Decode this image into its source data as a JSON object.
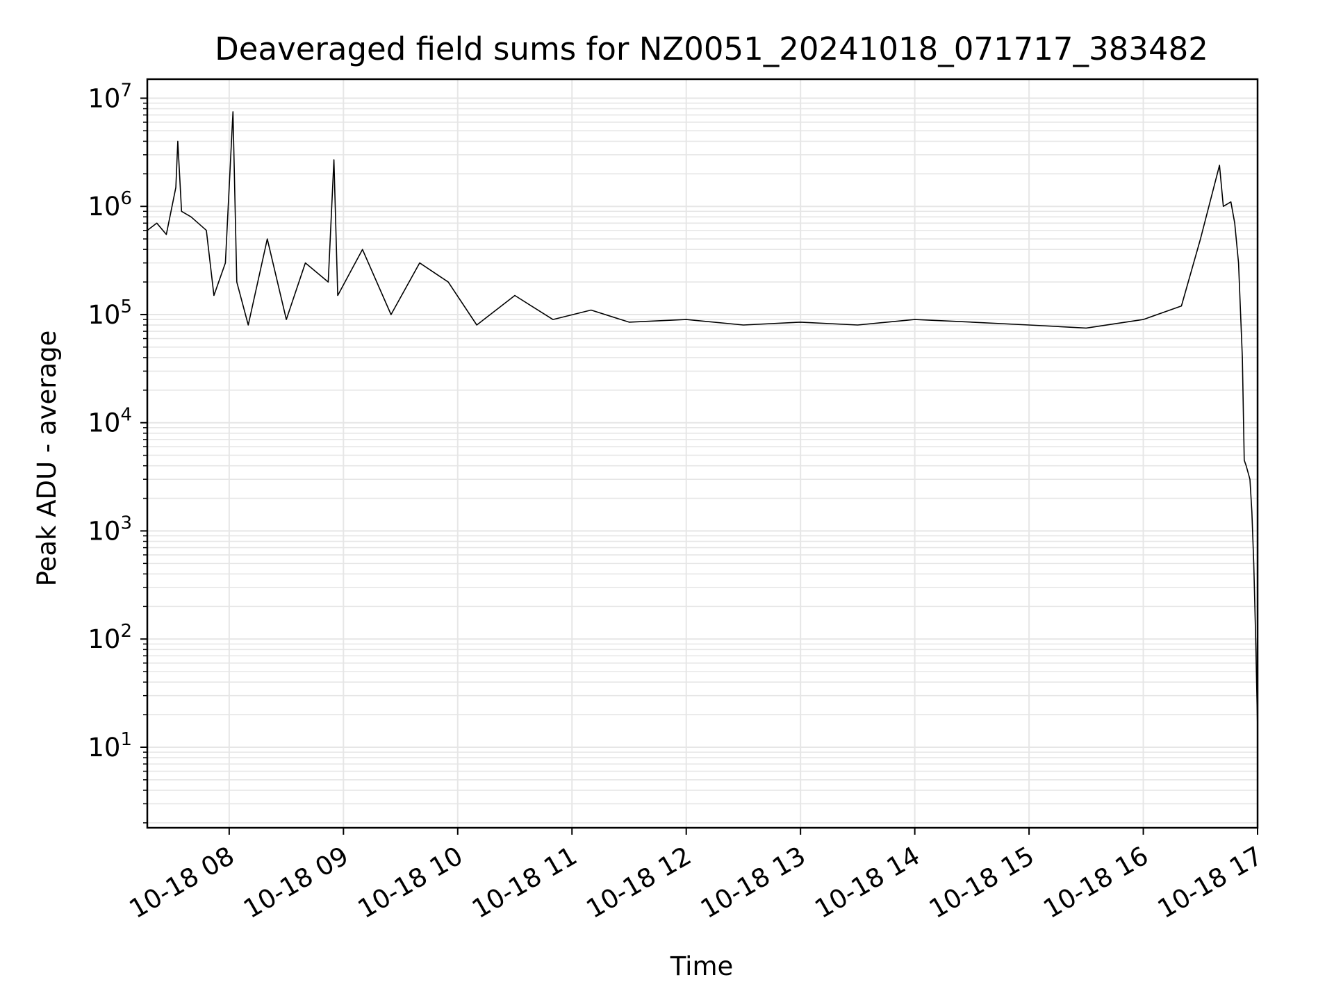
{
  "chart_data": {
    "type": "line",
    "title": "Deaveraged field sums for NZ0051_20241018_071717_383482",
    "xlabel": "Time",
    "ylabel": "Peak ADU - average",
    "yscale": "log",
    "grid": true,
    "line_color": "#000000",
    "grid_color": "#e6e6e6",
    "xlim": [
      "2024-10-18 07:17",
      "2024-10-18 17:00"
    ],
    "ylim": [
      1.8,
      15000000
    ],
    "x_ticks": [
      {
        "t": "2024-10-18 08:00",
        "label": "10-18 08"
      },
      {
        "t": "2024-10-18 09:00",
        "label": "10-18 09"
      },
      {
        "t": "2024-10-18 10:00",
        "label": "10-18 10"
      },
      {
        "t": "2024-10-18 11:00",
        "label": "10-18 11"
      },
      {
        "t": "2024-10-18 12:00",
        "label": "10-18 12"
      },
      {
        "t": "2024-10-18 13:00",
        "label": "10-18 13"
      },
      {
        "t": "2024-10-18 14:00",
        "label": "10-18 14"
      },
      {
        "t": "2024-10-18 15:00",
        "label": "10-18 15"
      },
      {
        "t": "2024-10-18 16:00",
        "label": "10-18 16"
      },
      {
        "t": "2024-10-18 17:00",
        "label": "10-18 17"
      }
    ],
    "y_ticks": [
      {
        "value": 10,
        "base": "10",
        "exp": "1"
      },
      {
        "value": 100,
        "base": "10",
        "exp": "2"
      },
      {
        "value": 1000,
        "base": "10",
        "exp": "3"
      },
      {
        "value": 10000,
        "base": "10",
        "exp": "4"
      },
      {
        "value": 100000,
        "base": "10",
        "exp": "5"
      },
      {
        "value": 1000000,
        "base": "10",
        "exp": "6"
      },
      {
        "value": 10000000,
        "base": "10",
        "exp": "7"
      }
    ],
    "series": [
      {
        "points": [
          [
            "2024-10-18 07:17",
            600000
          ],
          [
            "2024-10-18 07:22",
            700000
          ],
          [
            "2024-10-18 07:27",
            550000
          ],
          [
            "2024-10-18 07:32",
            1500000
          ],
          [
            "2024-10-18 07:33",
            4000000
          ],
          [
            "2024-10-18 07:35",
            900000
          ],
          [
            "2024-10-18 07:40",
            800000
          ],
          [
            "2024-10-18 07:48",
            600000
          ],
          [
            "2024-10-18 07:52",
            150000
          ],
          [
            "2024-10-18 07:58",
            300000
          ],
          [
            "2024-10-18 08:02",
            7500000
          ],
          [
            "2024-10-18 08:04",
            200000
          ],
          [
            "2024-10-18 08:10",
            80000
          ],
          [
            "2024-10-18 08:20",
            500000
          ],
          [
            "2024-10-18 08:30",
            90000
          ],
          [
            "2024-10-18 08:40",
            300000
          ],
          [
            "2024-10-18 08:52",
            200000
          ],
          [
            "2024-10-18 08:55",
            2700000
          ],
          [
            "2024-10-18 08:57",
            150000
          ],
          [
            "2024-10-18 09:10",
            400000
          ],
          [
            "2024-10-18 09:25",
            100000
          ],
          [
            "2024-10-18 09:40",
            300000
          ],
          [
            "2024-10-18 09:55",
            200000
          ],
          [
            "2024-10-18 10:10",
            80000
          ],
          [
            "2024-10-18 10:30",
            150000
          ],
          [
            "2024-10-18 10:50",
            90000
          ],
          [
            "2024-10-18 11:10",
            110000
          ],
          [
            "2024-10-18 11:30",
            85000
          ],
          [
            "2024-10-18 12:00",
            90000
          ],
          [
            "2024-10-18 12:30",
            80000
          ],
          [
            "2024-10-18 13:00",
            85000
          ],
          [
            "2024-10-18 13:30",
            80000
          ],
          [
            "2024-10-18 14:00",
            90000
          ],
          [
            "2024-10-18 14:30",
            85000
          ],
          [
            "2024-10-18 15:00",
            80000
          ],
          [
            "2024-10-18 15:30",
            75000
          ],
          [
            "2024-10-18 16:00",
            90000
          ],
          [
            "2024-10-18 16:20",
            120000
          ],
          [
            "2024-10-18 16:30",
            500000
          ],
          [
            "2024-10-18 16:40",
            2400000
          ],
          [
            "2024-10-18 16:42",
            1000000
          ],
          [
            "2024-10-18 16:46",
            1100000
          ],
          [
            "2024-10-18 16:48",
            700000
          ],
          [
            "2024-10-18 16:50",
            300000
          ],
          [
            "2024-10-18 16:52",
            40000
          ],
          [
            "2024-10-18 16:53",
            4500
          ],
          [
            "2024-10-18 16:54",
            4000
          ],
          [
            "2024-10-18 16:56",
            3000
          ],
          [
            "2024-10-18 16:57",
            1500
          ],
          [
            "2024-10-18 16:58",
            500
          ],
          [
            "2024-10-18 16:59",
            100
          ],
          [
            "2024-10-18 17:00",
            15
          ],
          [
            "2024-10-18 17:00",
            4
          ]
        ]
      }
    ]
  }
}
